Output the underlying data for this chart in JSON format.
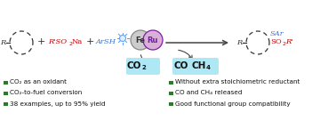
{
  "background_color": "#ffffff",
  "bullet_color": "#2d7a2d",
  "bullet_items_left": [
    "CO₂ as an oxidant",
    "CO₂-to-fuel conversion",
    "38 examples, up to 95% yield"
  ],
  "bullet_items_right": [
    "Without extra stoichiometric reductant",
    "CO and CH₄ released",
    "Good functional group compatibility"
  ],
  "co2_box_color": "#aee8f5",
  "co_ch4_box_color": "#aee8f5",
  "arrow_color": "#444444",
  "fe_face_color": "#cccccc",
  "fe_edge_color": "#888888",
  "ru_face_color": "#d8b0d8",
  "ru_edge_color": "#8020a0",
  "fe_text_color": "#333333",
  "ru_text_color": "#7020a0",
  "reactant2_color": "#c00000",
  "reactant3_color": "#4472c4",
  "product_sar_color": "#4472c4",
  "product_so2r_color": "#c00000",
  "ring_color": "#333333",
  "plus_color": "#333333",
  "text_color": "#111111",
  "light_ray_color": "#5599ff"
}
